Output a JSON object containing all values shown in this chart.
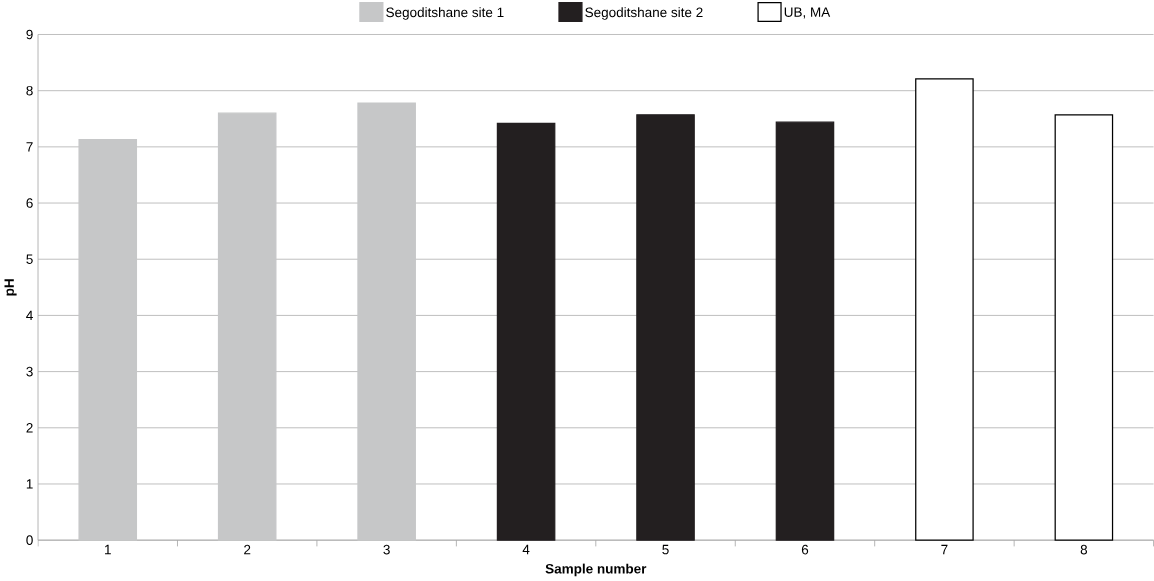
{
  "chart_data": {
    "type": "bar",
    "xlabel": "Sample number",
    "ylabel": "pH",
    "categories": [
      "1",
      "2",
      "3",
      "4",
      "5",
      "6",
      "7",
      "8"
    ],
    "series": [
      {
        "name": "Segoditshane site 1",
        "color": "#c6c7c8",
        "values": [
          7.13,
          7.6,
          7.78,
          null,
          null,
          null,
          null,
          null
        ]
      },
      {
        "name": "Segoditshane site 2",
        "color": "#231f20",
        "values": [
          null,
          null,
          null,
          7.42,
          7.57,
          7.44,
          null,
          null
        ]
      },
      {
        "name": "UB, MA",
        "color": "#ffffff",
        "values": [
          null,
          null,
          null,
          null,
          null,
          null,
          8.21,
          7.57
        ]
      }
    ],
    "ylim": [
      0,
      9
    ],
    "yticks": [
      0,
      1,
      2,
      3,
      4,
      5,
      6,
      7,
      8,
      9
    ],
    "grid": "y",
    "legend": "top"
  }
}
